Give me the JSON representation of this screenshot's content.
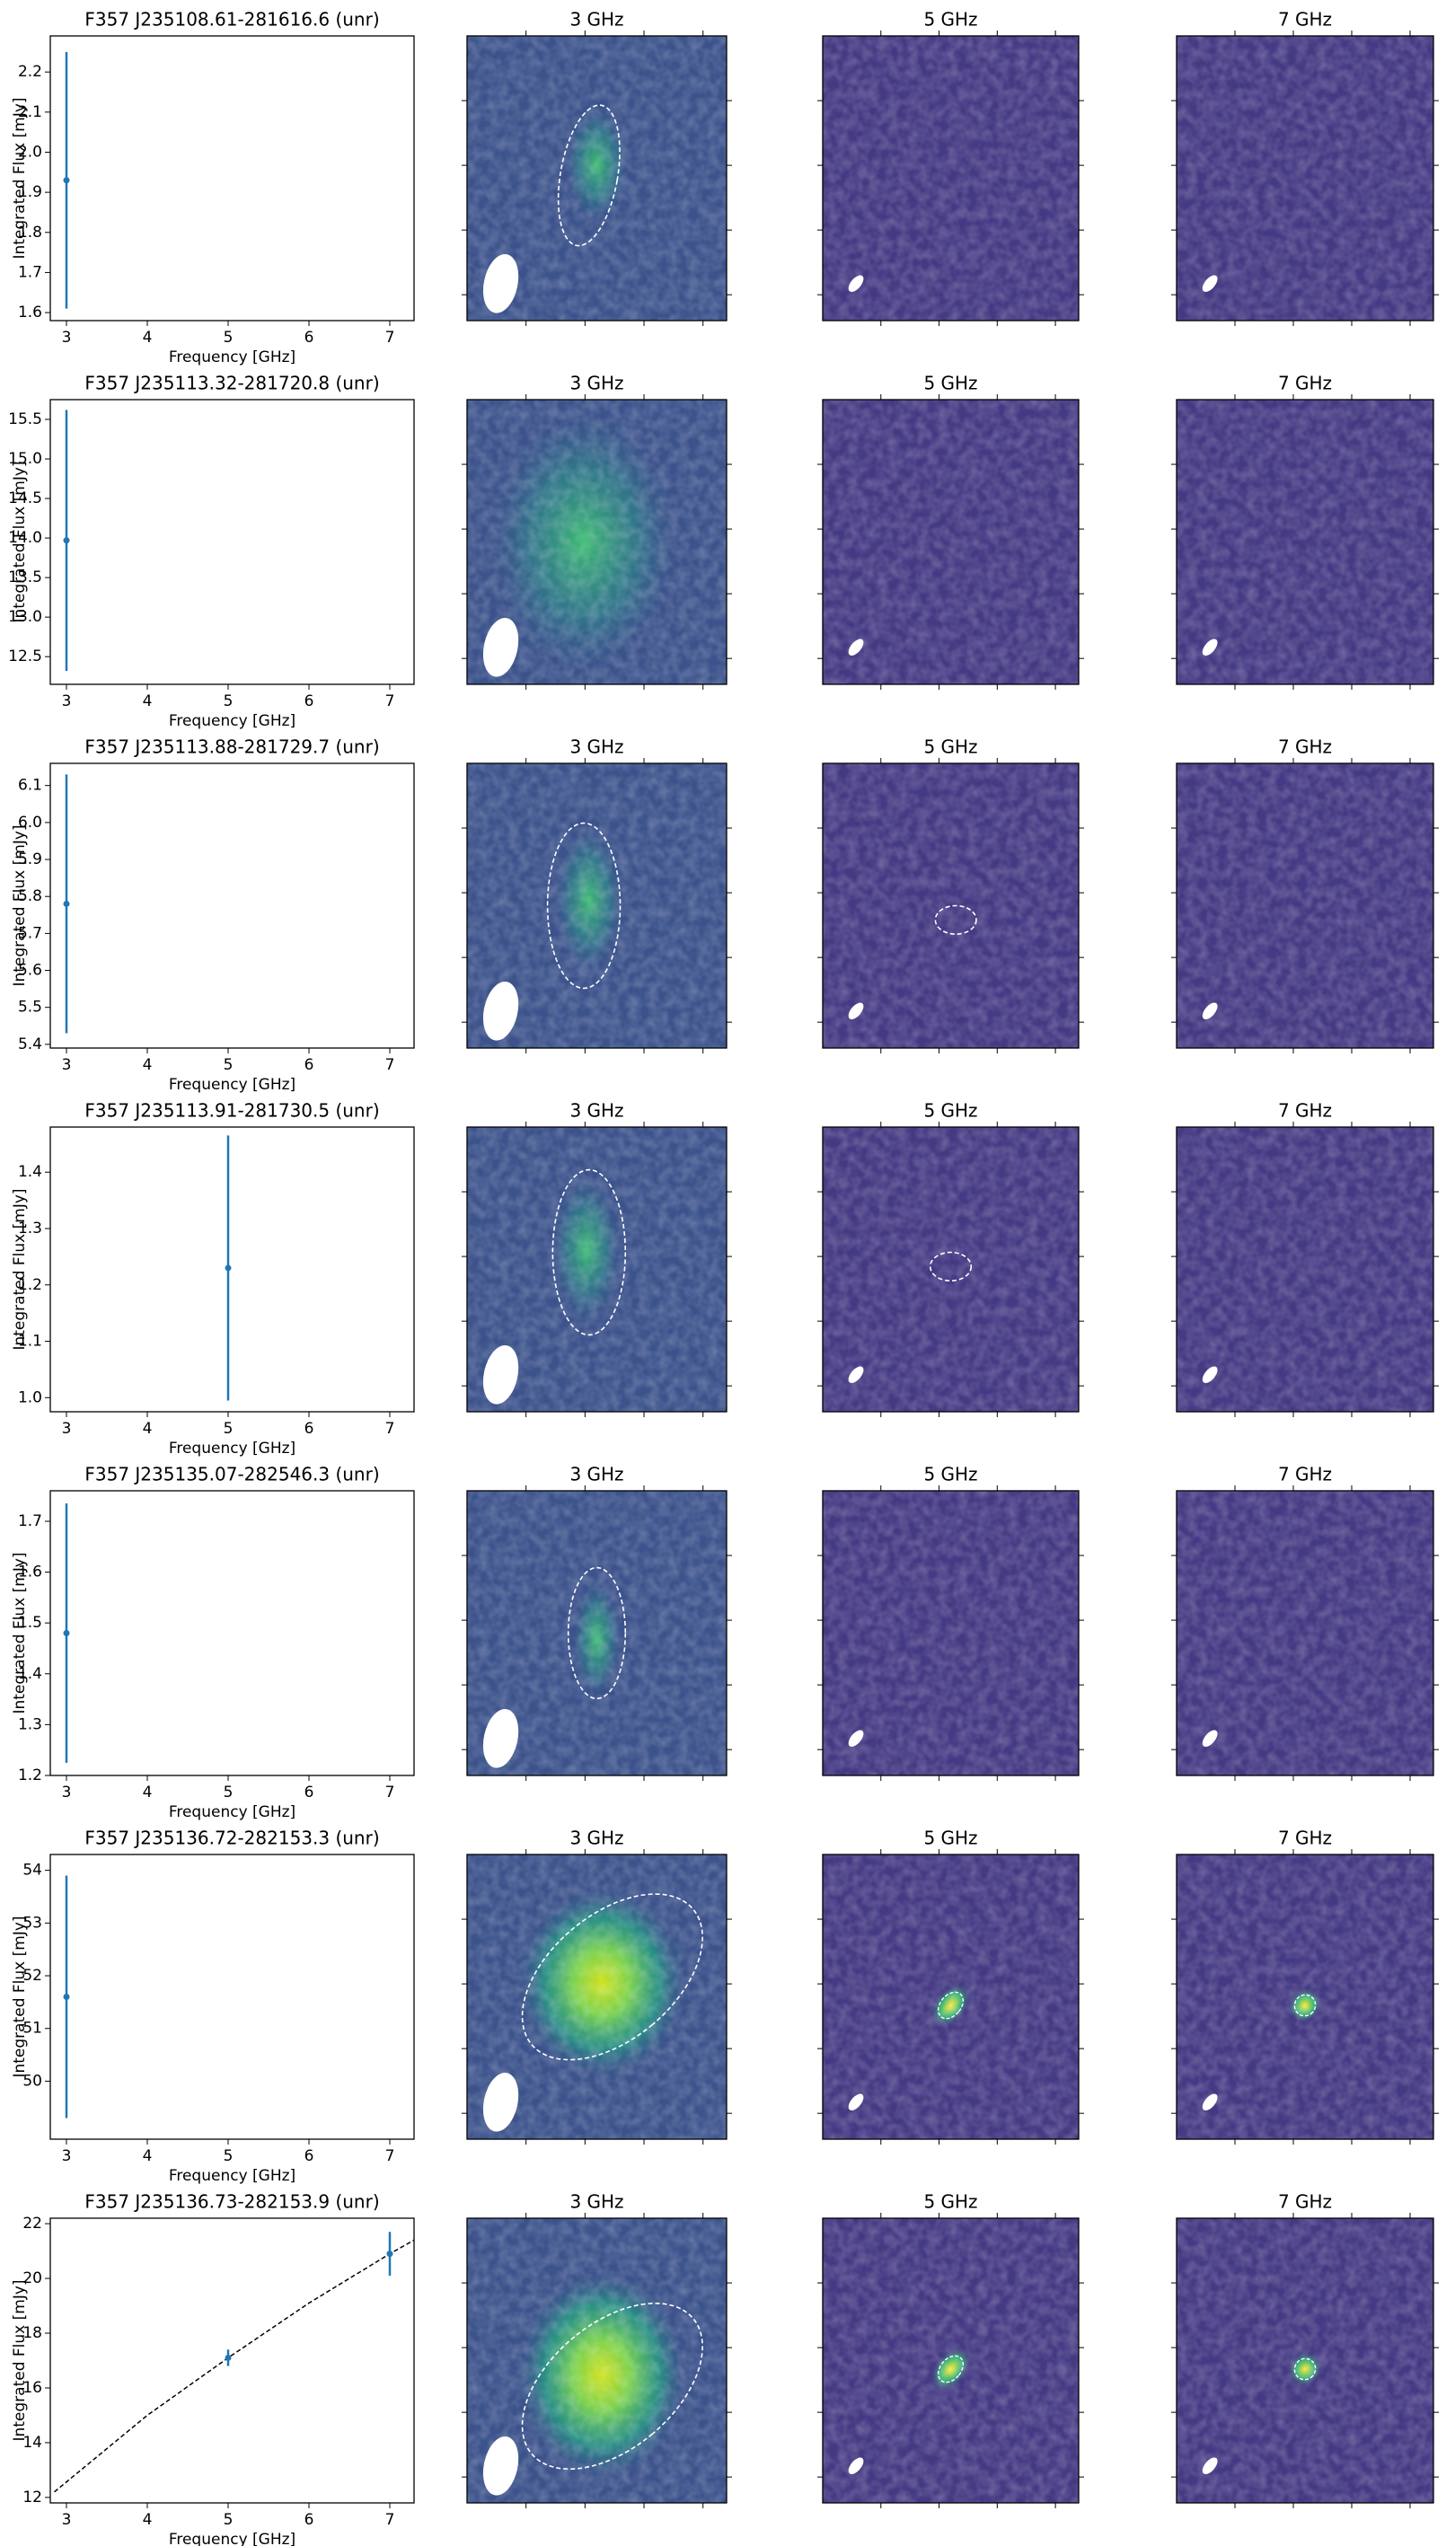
{
  "chart_data": [
    {
      "type": "errorbar",
      "title": "F357 J235108.61-281616.6 (unr)",
      "xlabel": "Frequency [GHz]",
      "ylabel": "Integrated Flux [mJy]",
      "color": "#1f77b4",
      "x": [
        3
      ],
      "values": [
        1.93
      ],
      "errors": [
        0.32
      ],
      "xlim": [
        2.8,
        7.3
      ],
      "xticks": [
        3,
        4,
        5,
        6,
        7
      ],
      "ylim": [
        1.58,
        2.29
      ],
      "yticks": [
        1.6,
        1.7,
        1.8,
        1.9,
        {
          "value": 2,
          "label": "2.0"
        },
        2.1,
        2.2
      ],
      "panels": [
        "3 GHz",
        "5 GHz",
        "7 GHz"
      ]
    },
    {
      "type": "errorbar",
      "title": "F357 J235113.32-281720.8 (unr)",
      "xlabel": "Frequency [GHz]",
      "ylabel": "Integrated Flux [mJy]",
      "color": "#1f77b4",
      "x": [
        3
      ],
      "values": [
        13.97
      ],
      "errors": [
        1.65
      ],
      "xlim": [
        2.8,
        7.3
      ],
      "xticks": [
        3,
        4,
        5,
        6,
        7
      ],
      "ylim": [
        12.15,
        15.75
      ],
      "yticks": [
        12.5,
        {
          "value": 13,
          "label": "13.0"
        },
        13.5,
        {
          "value": 14,
          "label": "14.0"
        },
        14.5,
        {
          "value": 15,
          "label": "15.0"
        },
        15.5
      ],
      "panels": [
        "3 GHz",
        "5 GHz",
        "7 GHz"
      ]
    },
    {
      "type": "errorbar",
      "title": "F357 J235113.88-281729.7 (unr)",
      "xlabel": "Frequency [GHz]",
      "ylabel": "Integrated Flux [mJy]",
      "color": "#1f77b4",
      "x": [
        3
      ],
      "values": [
        5.78
      ],
      "errors": [
        0.35
      ],
      "xlim": [
        2.8,
        7.3
      ],
      "xticks": [
        3,
        4,
        5,
        6,
        7
      ],
      "ylim": [
        5.39,
        6.16
      ],
      "yticks": [
        5.4,
        5.5,
        5.6,
        5.7,
        5.8,
        5.9,
        {
          "value": 6,
          "label": "6.0"
        },
        6.1
      ],
      "panels": [
        "3 GHz",
        "5 GHz",
        "7 GHz"
      ]
    },
    {
      "type": "errorbar",
      "title": "F357 J235113.91-281730.5 (unr)",
      "xlabel": "Frequency [GHz]",
      "ylabel": "Integrated Flux [mJy]",
      "color": "#1f77b4",
      "x": [
        5
      ],
      "values": [
        1.23
      ],
      "errors": [
        0.235
      ],
      "xlim": [
        2.8,
        7.3
      ],
      "xticks": [
        3,
        4,
        5,
        6,
        7
      ],
      "ylim": [
        0.975,
        1.48
      ],
      "yticks": [
        {
          "value": 1,
          "label": "1.0"
        },
        1.1,
        1.2,
        1.3,
        1.4
      ],
      "panels": [
        "3 GHz",
        "5 GHz",
        "7 GHz"
      ]
    },
    {
      "type": "errorbar",
      "title": "F357 J235135.07-282546.3 (unr)",
      "xlabel": "Frequency [GHz]",
      "ylabel": "Integrated Flux [mJy]",
      "color": "#1f77b4",
      "x": [
        3
      ],
      "values": [
        1.48
      ],
      "errors": [
        0.255
      ],
      "xlim": [
        2.8,
        7.3
      ],
      "xticks": [
        3,
        4,
        5,
        6,
        7
      ],
      "ylim": [
        1.2,
        1.76
      ],
      "yticks": [
        1.2,
        1.3,
        1.4,
        1.5,
        1.6,
        1.7
      ],
      "panels": [
        "3 GHz",
        "5 GHz",
        "7 GHz"
      ]
    },
    {
      "type": "errorbar",
      "title": "F357 J235136.72-282153.3 (unr)",
      "xlabel": "Frequency [GHz]",
      "ylabel": "Integrated Flux [mJy]",
      "color": "#1f77b4",
      "x": [
        3
      ],
      "values": [
        51.6
      ],
      "errors": [
        2.3
      ],
      "xlim": [
        2.8,
        7.3
      ],
      "xticks": [
        3,
        4,
        5,
        6,
        7
      ],
      "ylim": [
        48.9,
        54.3
      ],
      "yticks": [
        50,
        51,
        52,
        53,
        54
      ],
      "panels": [
        "3 GHz",
        "5 GHz",
        "7 GHz"
      ]
    },
    {
      "type": "errorbar",
      "title": "F357 J235136.73-282153.9 (unr)",
      "xlabel": "Frequency [GHz]",
      "ylabel": "Integrated Flux [mJy]",
      "color": "#1f77b4",
      "x": [
        5,
        7
      ],
      "values": [
        17.1,
        20.9
      ],
      "errors": [
        0.3,
        0.8
      ],
      "xlim": [
        2.8,
        7.3
      ],
      "xticks": [
        3,
        4,
        5,
        6,
        7
      ],
      "ylim": [
        11.8,
        22.2
      ],
      "yticks": [
        12,
        14,
        16,
        18,
        20,
        22
      ],
      "fit": {
        "x": [
          2.85,
          4,
          5,
          6,
          7,
          7.3
        ],
        "values": [
          12.2,
          15.0,
          17.1,
          19.1,
          20.9,
          21.4
        ]
      },
      "panels": [
        "3 GHz",
        "5 GHz",
        "7 GHz"
      ]
    }
  ]
}
